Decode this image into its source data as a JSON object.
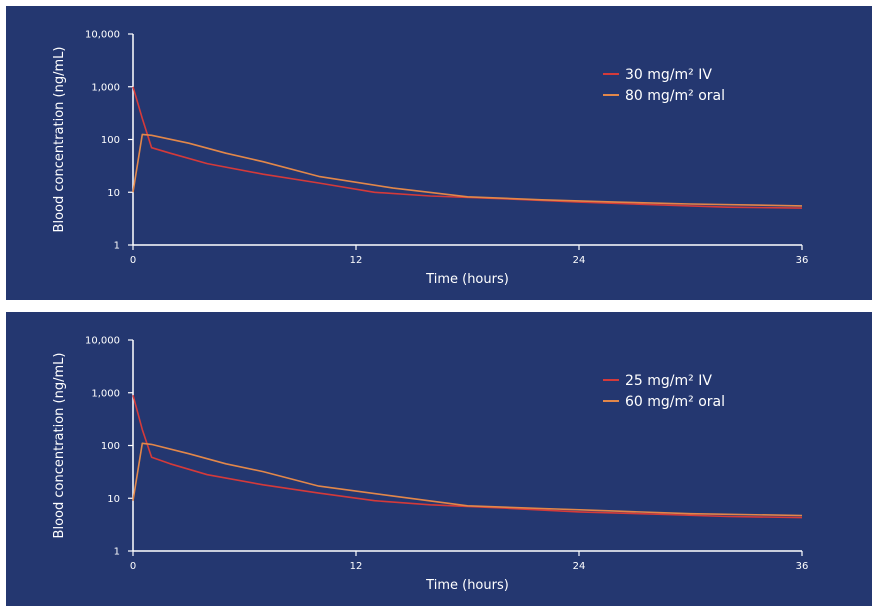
{
  "chart_data": [
    {
      "type": "line",
      "title": "",
      "xlabel": "Time (hours)",
      "ylabel": "Blood concentration (ng/mL)",
      "yscale": "log",
      "xlim": [
        0,
        36
      ],
      "ylim": [
        1,
        10000
      ],
      "x_ticks": [
        "0",
        "12",
        "24",
        "36"
      ],
      "y_ticks": [
        "1",
        "10",
        "100",
        "1,000",
        "10,000"
      ],
      "legend_position": "top-right",
      "grid": false,
      "series": [
        {
          "name": "30 mg/m² IV",
          "color": "#d43a3a",
          "points": [
            [
              0,
              1000
            ],
            [
              0.5,
              250
            ],
            [
              1,
              70
            ],
            [
              2,
              55
            ],
            [
              4,
              35
            ],
            [
              7,
              22
            ],
            [
              10,
              15
            ],
            [
              13,
              10
            ],
            [
              16,
              8.5
            ],
            [
              20,
              7.5
            ],
            [
              24,
              6.5
            ],
            [
              28,
              5.8
            ],
            [
              32,
              5.2
            ],
            [
              36,
              5
            ]
          ]
        },
        {
          "name": "80 mg/m² oral",
          "color": "#e2874a",
          "points": [
            [
              0,
              10
            ],
            [
              0.5,
              125
            ],
            [
              1,
              120
            ],
            [
              3,
              85
            ],
            [
              5,
              55
            ],
            [
              7,
              38
            ],
            [
              10,
              20
            ],
            [
              14,
              12
            ],
            [
              18,
              8.2
            ],
            [
              22,
              7.2
            ],
            [
              26,
              6.5
            ],
            [
              30,
              6
            ],
            [
              36,
              5.5
            ]
          ]
        }
      ]
    },
    {
      "type": "line",
      "title": "",
      "xlabel": "Time (hours)",
      "ylabel": "Blood concentration (ng/mL)",
      "yscale": "log",
      "xlim": [
        0,
        36
      ],
      "ylim": [
        1,
        10000
      ],
      "x_ticks": [
        "0",
        "12",
        "24",
        "36"
      ],
      "y_ticks": [
        "1",
        "10",
        "100",
        "1,000",
        "10,000"
      ],
      "legend_position": "top-right",
      "grid": false,
      "series": [
        {
          "name": "25 mg/m² IV",
          "color": "#d43a3a",
          "points": [
            [
              0,
              900
            ],
            [
              0.5,
              200
            ],
            [
              1,
              60
            ],
            [
              2,
              45
            ],
            [
              4,
              28
            ],
            [
              7,
              18
            ],
            [
              10,
              12.5
            ],
            [
              13,
              9
            ],
            [
              16,
              7.5
            ],
            [
              20,
              6.5
            ],
            [
              24,
              5.5
            ],
            [
              28,
              5
            ],
            [
              32,
              4.5
            ],
            [
              36,
              4.3
            ]
          ]
        },
        {
          "name": "60 mg/m² oral",
          "color": "#e2874a",
          "points": [
            [
              0,
              9
            ],
            [
              0.5,
              110
            ],
            [
              1,
              105
            ],
            [
              3,
              70
            ],
            [
              5,
              45
            ],
            [
              7,
              32
            ],
            [
              10,
              17
            ],
            [
              14,
              11
            ],
            [
              18,
              7.2
            ],
            [
              22,
              6.4
            ],
            [
              26,
              5.7
            ],
            [
              30,
              5.1
            ],
            [
              36,
              4.7
            ]
          ]
        }
      ]
    }
  ]
}
